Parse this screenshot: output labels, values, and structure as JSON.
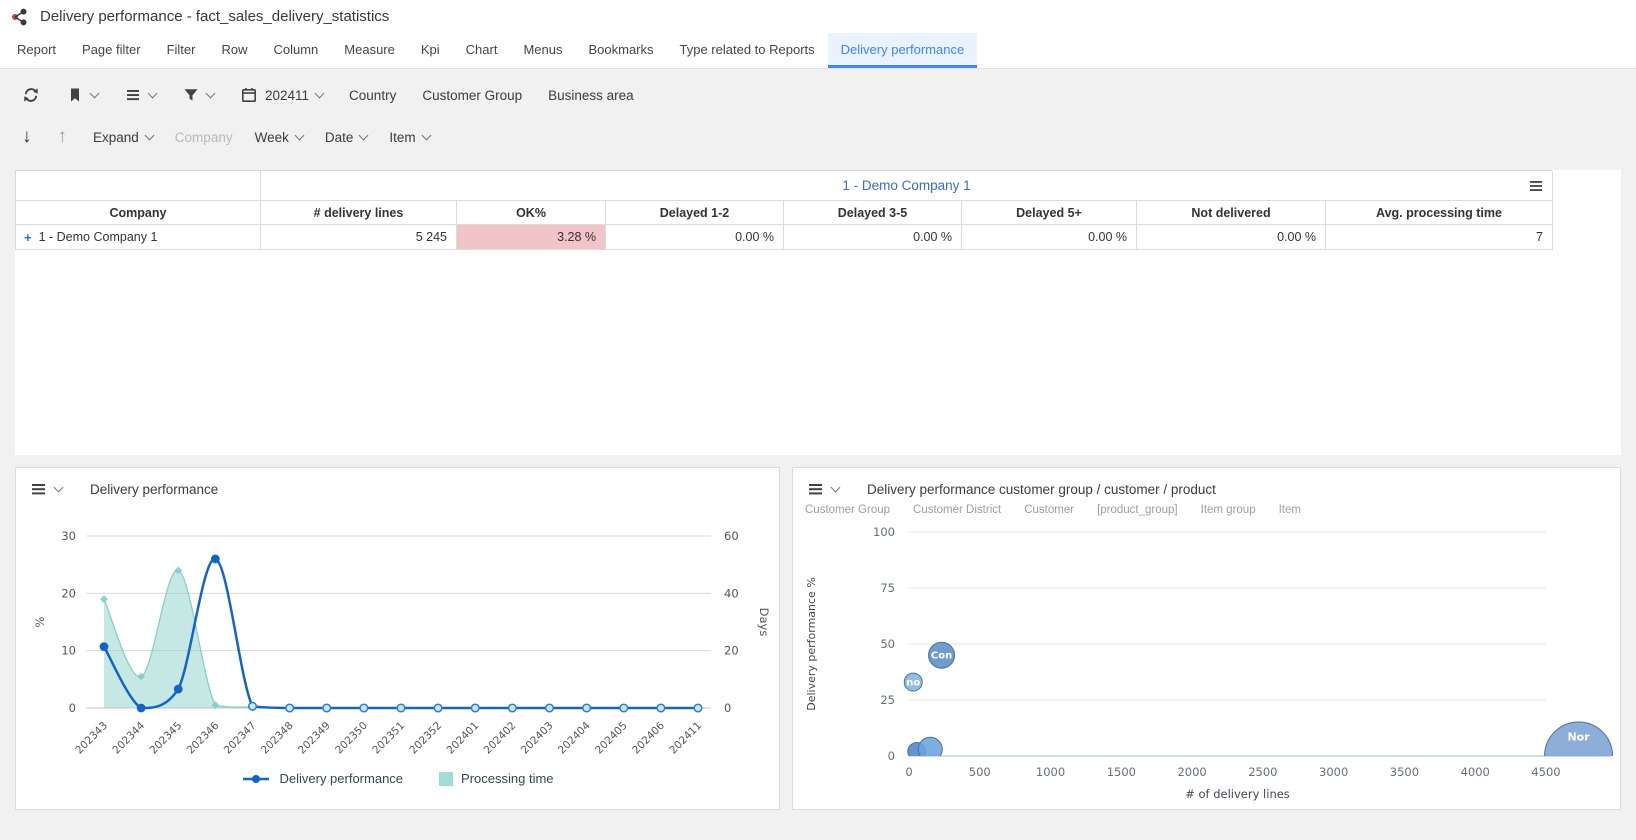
{
  "window": {
    "title": "Delivery performance - fact_sales_delivery_statistics"
  },
  "nav_tabs": {
    "items": [
      "Report",
      "Page filter",
      "Filter",
      "Row",
      "Column",
      "Measure",
      "Kpi",
      "Chart",
      "Menus",
      "Bookmarks",
      "Type related to Reports",
      "Delivery performance"
    ],
    "active": "Delivery performance"
  },
  "toolbar_primary": {
    "icons": [
      "refresh-icon",
      "bookmark-icon",
      "menu-icon",
      "filter-icon",
      "calendar-icon"
    ],
    "period_value": "202411",
    "buttons": [
      "Country",
      "Customer Group",
      "Business area"
    ]
  },
  "toolbar_secondary": {
    "drill_down": "arrow-down-icon",
    "drill_up": "arrow-up-icon",
    "expand_label": "Expand",
    "company_label": "Company",
    "week_label": "Week",
    "date_label": "Date",
    "item_label": "Item"
  },
  "pivot_table": {
    "group_header": "1 - Demo Company 1",
    "columns": [
      "Company",
      "# delivery lines",
      "OK%",
      "Delayed 1-2",
      "Delayed 3-5",
      "Delayed 5+",
      "Not delivered",
      "Avg. processing time"
    ],
    "row": {
      "expander": "+",
      "company": "1 - Demo Company 1",
      "values": [
        "5 245",
        "3.28 %",
        "0.00 %",
        "0.00 %",
        "0.00 %",
        "0.00 %",
        "7"
      ],
      "ok_cell_bg": "#f2c3c9"
    }
  },
  "theme": {
    "accent_blue": "#4285f4",
    "link_blue": "#3a6fc0",
    "line_blue": "#1565c0",
    "area_teal": "#80cbc4",
    "warn_pink": "#f2c3c9"
  },
  "chart_data": [
    {
      "type": "line",
      "title": "Delivery performance",
      "categories": [
        "202343",
        "202344",
        "202345",
        "202346",
        "202347",
        "202348",
        "202349",
        "202350",
        "202351",
        "202352",
        "202401",
        "202402",
        "202403",
        "202404",
        "202405",
        "202406",
        "202411"
      ],
      "series": [
        {
          "name": "Delivery performance",
          "type": "line",
          "axis": "left",
          "color": "#1565c0",
          "values": [
            10.7,
            0,
            3.3,
            26,
            0.3,
            0,
            0,
            0,
            0,
            0,
            0,
            0,
            0,
            0,
            0,
            0,
            0
          ]
        },
        {
          "name": "Processing time",
          "type": "area",
          "axis": "right",
          "color": "#80cbc4",
          "values": [
            38,
            11,
            48,
            1,
            0.3,
            0,
            0,
            0,
            0,
            0,
            0,
            0,
            0,
            0,
            0,
            0,
            0
          ]
        }
      ],
      "left_axis": {
        "title": "%",
        "ticks": [
          0,
          10,
          20,
          30
        ],
        "max": 30
      },
      "right_axis": {
        "title": "Days",
        "ticks": [
          0,
          20,
          40,
          60
        ],
        "max": 60
      },
      "legend_position": "bottom",
      "grid": "horizontal"
    },
    {
      "type": "scatter",
      "title": "Delivery performance customer group / customer / product",
      "drill_levels": [
        "Customer Group",
        "Customer District",
        "Customer",
        "[product_group]",
        "Item group",
        "Item"
      ],
      "xlabel": "# of delivery lines",
      "ylabel": "Delivery performance %",
      "x_ticks": [
        0,
        500,
        1000,
        1500,
        2000,
        2500,
        3000,
        3500,
        4000,
        4500
      ],
      "y_ticks": [
        0,
        25,
        50,
        75,
        100
      ],
      "xlim": [
        0,
        5000
      ],
      "ylim": [
        0,
        100
      ],
      "grid": "horizontal",
      "points": [
        {
          "label": "Con",
          "x": 230,
          "y": 45,
          "r": 13,
          "color": "#5b8ec6"
        },
        {
          "label": "no",
          "x": 30,
          "y": 33,
          "r": 9,
          "color": "#85b4e0"
        },
        {
          "label": "",
          "x": 55,
          "y": 2,
          "r": 9,
          "color": "#4f86c6"
        },
        {
          "label": "",
          "x": 150,
          "y": 3,
          "r": 12,
          "color": "#6ba3dc"
        },
        {
          "label": "Nor",
          "x": 4730,
          "y": 0,
          "r": 34,
          "color": "#7ca3d3"
        }
      ]
    }
  ]
}
